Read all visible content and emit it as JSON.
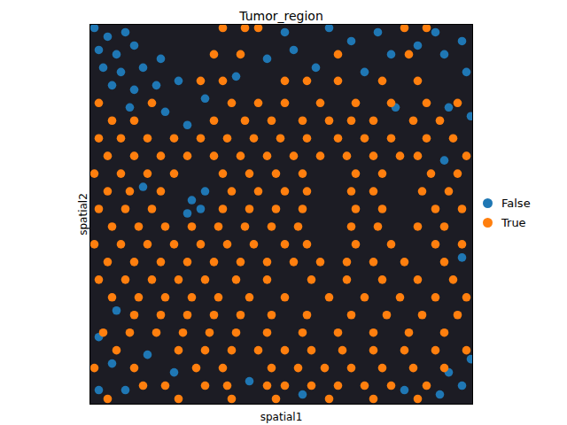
{
  "chart_data": {
    "type": "scatter",
    "title": "Tumor_region",
    "x_label": "spatial1",
    "y_label": "spatial2",
    "xlim": [
      0,
      432
    ],
    "ylim": [
      0,
      430
    ],
    "tick_labels": false,
    "legend": "right",
    "series": [
      {
        "name": "False",
        "color": "#1f77b4",
        "x": [
          5,
          20,
          40,
          10,
          30,
          50,
          15,
          35,
          60,
          80,
          25,
          50,
          75,
          100,
          45,
          85,
          130,
          110,
          165,
          200,
          230,
          255,
          220,
          270,
          295,
          325,
          310,
          340,
          370,
          390,
          400,
          420,
          425,
          405,
          430,
          345,
          400,
          115,
          125,
          110,
          130,
          60,
          30,
          10,
          25,
          10,
          40,
          65,
          95,
          180,
          405,
          420,
          430,
          395,
          355,
          240,
          420
        ],
        "y": [
          426,
          416,
          421,
          401,
          396,
          406,
          381,
          376,
          381,
          391,
          361,
          356,
          361,
          366,
          336,
          331,
          346,
          316,
          371,
          391,
          401,
          381,
          421,
          426,
          411,
          421,
          376,
          396,
          406,
          421,
          396,
          411,
          376,
          336,
          326,
          336,
          276,
          231,
          221,
          216,
          241,
          246,
          106,
          76,
          46,
          16,
          16,
          56,
          36,
          26,
          36,
          21,
          51,
          11,
          16,
          11,
          166
        ]
      },
      {
        "name": "True",
        "color": "#ff7f0e",
        "x": [
          150,
          175,
          190,
          355,
          380,
          140,
          170,
          280,
          360,
          125,
          150,
          220,
          245,
          280,
          330,
          370,
          10,
          70,
          160,
          190,
          220,
          260,
          300,
          340,
          380,
          415,
          25,
          50,
          140,
          175,
          205,
          240,
          270,
          295,
          320,
          365,
          395,
          10,
          35,
          65,
          95,
          125,
          155,
          185,
          215,
          245,
          280,
          310,
          340,
          380,
          410,
          20,
          50,
          80,
          110,
          140,
          170,
          200,
          230,
          260,
          290,
          320,
          350,
          370,
          425,
          5,
          35,
          65,
          95,
          150,
          180,
          210,
          240,
          300,
          330,
          385,
          415,
          20,
          45,
          80,
          160,
          190,
          220,
          245,
          295,
          320,
          375,
          405,
          10,
          40,
          70,
          150,
          180,
          210,
          240,
          300,
          330,
          390,
          420,
          25,
          55,
          85,
          115,
          145,
          175,
          205,
          235,
          295,
          325,
          370,
          400,
          5,
          35,
          65,
          95,
          125,
          155,
          185,
          220,
          245,
          300,
          340,
          390,
          420,
          20,
          50,
          80,
          110,
          140,
          170,
          200,
          230,
          260,
          290,
          320,
          355,
          400,
          10,
          40,
          70,
          100,
          130,
          165,
          200,
          250,
          290,
          330,
          370,
          410,
          25,
          55,
          85,
          115,
          145,
          180,
          220,
          270,
          310,
          350,
          390,
          425,
          50,
          80,
          110,
          140,
          170,
          205,
          245,
          295,
          335,
          375,
          415,
          15,
          45,
          75,
          105,
          135,
          165,
          200,
          240,
          280,
          320,
          360,
          400,
          30,
          100,
          130,
          160,
          190,
          220,
          250,
          285,
          320,
          355,
          390,
          425,
          5,
          50,
          120,
          150,
          205,
          235,
          265,
          295,
          330,
          365,
          400,
          60,
          85,
          130,
          155,
          200,
          220,
          250,
          280,
          310,
          340,
          380,
          20,
          100,
          160,
          210,
          270,
          320,
          370
        ],
        "y": [
          426,
          426,
          426,
          426,
          426,
          396,
          396,
          396,
          396,
          366,
          366,
          366,
          366,
          366,
          366,
          366,
          341,
          341,
          341,
          341,
          341,
          341,
          341,
          341,
          341,
          341,
          321,
          321,
          321,
          321,
          321,
          321,
          321,
          321,
          321,
          321,
          321,
          301,
          301,
          301,
          301,
          301,
          301,
          301,
          301,
          301,
          301,
          301,
          301,
          301,
          301,
          281,
          281,
          281,
          281,
          281,
          281,
          281,
          281,
          281,
          281,
          281,
          281,
          281,
          281,
          261,
          261,
          261,
          261,
          261,
          261,
          261,
          261,
          261,
          261,
          261,
          261,
          241,
          241,
          241,
          241,
          241,
          241,
          241,
          241,
          241,
          241,
          241,
          221,
          221,
          221,
          221,
          221,
          221,
          221,
          221,
          221,
          221,
          221,
          201,
          201,
          201,
          201,
          201,
          201,
          201,
          201,
          201,
          201,
          201,
          201,
          181,
          181,
          181,
          181,
          181,
          181,
          181,
          181,
          181,
          181,
          181,
          181,
          181,
          161,
          161,
          161,
          161,
          161,
          161,
          161,
          161,
          161,
          161,
          161,
          161,
          161,
          141,
          141,
          141,
          141,
          141,
          141,
          141,
          141,
          141,
          141,
          141,
          141,
          121,
          121,
          121,
          121,
          121,
          121,
          121,
          121,
          121,
          121,
          121,
          121,
          101,
          101,
          101,
          101,
          101,
          101,
          101,
          101,
          101,
          101,
          101,
          81,
          81,
          81,
          81,
          81,
          81,
          81,
          81,
          81,
          81,
          81,
          81,
          61,
          61,
          61,
          61,
          61,
          61,
          61,
          61,
          61,
          61,
          61,
          61,
          41,
          41,
          41,
          41,
          41,
          41,
          41,
          41,
          41,
          41,
          41,
          21,
          21,
          21,
          21,
          21,
          21,
          21,
          21,
          21,
          21,
          21,
          6,
          6,
          6,
          6,
          6,
          6,
          6
        ]
      }
    ]
  }
}
